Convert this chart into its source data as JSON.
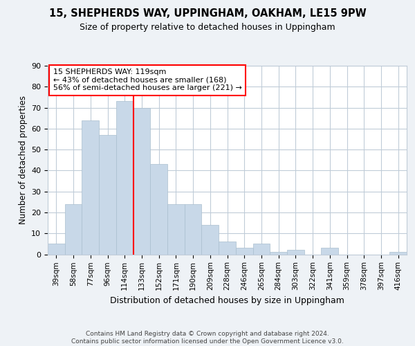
{
  "title1": "15, SHEPHERDS WAY, UPPINGHAM, OAKHAM, LE15 9PW",
  "title2": "Size of property relative to detached houses in Uppingham",
  "xlabel": "Distribution of detached houses by size in Uppingham",
  "ylabel": "Number of detached properties",
  "categories": [
    "39sqm",
    "58sqm",
    "77sqm",
    "96sqm",
    "114sqm",
    "133sqm",
    "152sqm",
    "171sqm",
    "190sqm",
    "209sqm",
    "228sqm",
    "246sqm",
    "265sqm",
    "284sqm",
    "303sqm",
    "322sqm",
    "341sqm",
    "359sqm",
    "378sqm",
    "397sqm",
    "416sqm"
  ],
  "values": [
    5,
    24,
    64,
    57,
    73,
    70,
    43,
    24,
    24,
    14,
    6,
    3,
    5,
    1,
    2,
    0,
    3,
    0,
    0,
    0,
    1
  ],
  "bar_color": "#c8d8e8",
  "bar_edge_color": "#aabfcf",
  "vline_color": "red",
  "vline_index": 4,
  "annotation_text": "15 SHEPHERDS WAY: 119sqm\n← 43% of detached houses are smaller (168)\n56% of semi-detached houses are larger (221) →",
  "annotation_box_color": "white",
  "annotation_box_edge": "red",
  "ylim": [
    0,
    90
  ],
  "yticks": [
    0,
    10,
    20,
    30,
    40,
    50,
    60,
    70,
    80,
    90
  ],
  "footer": "Contains HM Land Registry data © Crown copyright and database right 2024.\nContains public sector information licensed under the Open Government Licence v3.0.",
  "bg_color": "#eef2f6",
  "plot_bg_color": "white",
  "grid_color": "#c0ccd8"
}
